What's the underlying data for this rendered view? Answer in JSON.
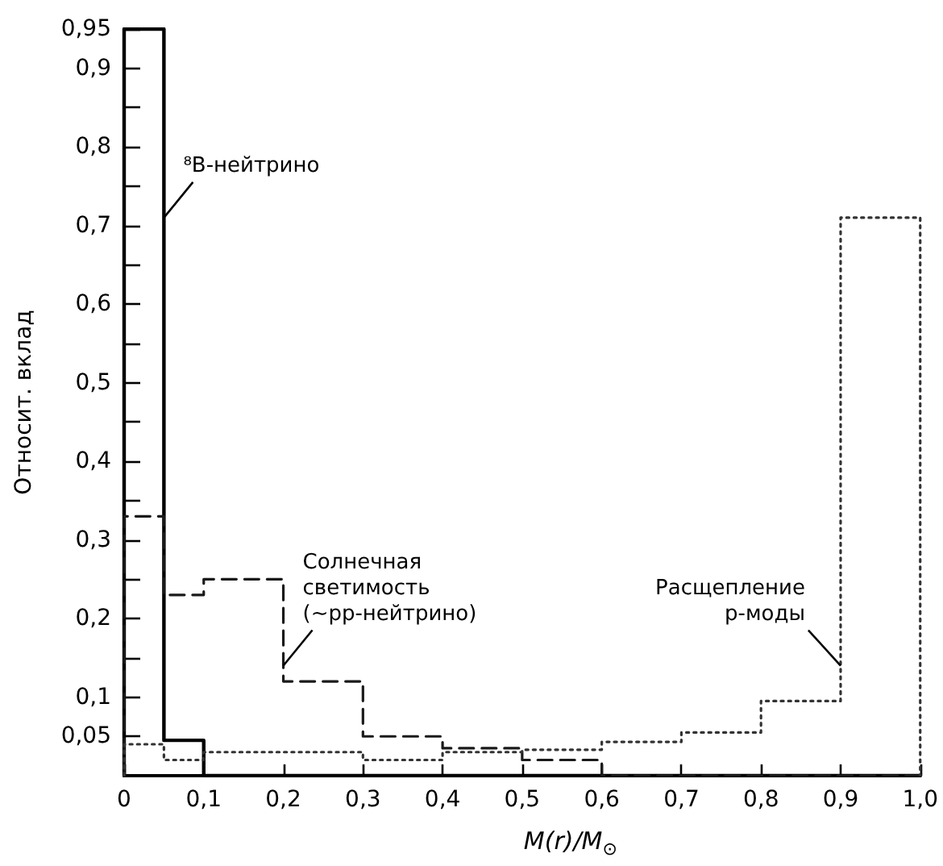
{
  "chart_data": {
    "type": "histogram",
    "xlabel": "M(r)/M$_{⊙}$",
    "ylabel": "Относит. вклад",
    "bins": [
      0,
      0.05,
      0.1,
      0.2,
      0.3,
      0.4,
      0.5,
      0.6,
      0.7,
      0.8,
      0.9,
      1.0
    ],
    "series": [
      {
        "color": "#000000",
        "line_style": "solid",
        "values": [
          0.95,
          0.045,
          0,
          0,
          0,
          0,
          0,
          0,
          0,
          0,
          0
        ]
      },
      {
        "color": "#1a1a1a",
        "line_style": "dashed",
        "values": [
          0.33,
          0.23,
          0.25,
          0.12,
          0.05,
          0.035,
          0.02,
          0,
          0,
          0,
          0
        ]
      },
      {
        "color": "#333333",
        "line_style": "dotted",
        "values": [
          0.04,
          0.02,
          0.03,
          0.03,
          0.02,
          0.03,
          0.033,
          0.043,
          0.055,
          0.095,
          0.71
        ]
      }
    ],
    "annotations": [
      {
        "text": "⁸B-нейтрино",
        "x": 0.05,
        "y": 0.71
      },
      {
        "text": "Солнечная светимость (~pp-нейтрино)",
        "x": 0.2,
        "y": 0.14
      },
      {
        "text": "Расщепление p-моды",
        "x": 0.9,
        "y": 0.14
      }
    ],
    "xlim": [
      0,
      1.0
    ],
    "xticks": [
      {
        "value": 0,
        "label": "0"
      },
      {
        "value": 0.1,
        "label": "0,1"
      },
      {
        "value": 0.2,
        "label": "0,2"
      },
      {
        "value": 0.3,
        "label": "0,3"
      },
      {
        "value": 0.4,
        "label": "0,4"
      },
      {
        "value": 0.5,
        "label": "0,5"
      },
      {
        "value": 0.6,
        "label": "0,6"
      },
      {
        "value": 0.7,
        "label": "0,7"
      },
      {
        "value": 0.8,
        "label": "0,8"
      },
      {
        "value": 0.9,
        "label": "0,9"
      },
      {
        "value": 1.0,
        "label": "1,0"
      }
    ],
    "ylim": [
      0,
      0.95
    ],
    "yticks": [
      {
        "value": 0.05,
        "label": "0,05"
      },
      {
        "value": 0.1,
        "label": "0,1"
      },
      {
        "value": 0.15,
        "label": null
      },
      {
        "value": 0.2,
        "label": "0,2"
      },
      {
        "value": 0.25,
        "label": null
      },
      {
        "value": 0.3,
        "label": "0,3"
      },
      {
        "value": 0.35,
        "label": null
      },
      {
        "value": 0.4,
        "label": "0,4"
      },
      {
        "value": 0.45,
        "label": null
      },
      {
        "value": 0.5,
        "label": "0,5"
      },
      {
        "value": 0.55,
        "label": null
      },
      {
        "value": 0.6,
        "label": "0,6"
      },
      {
        "value": 0.65,
        "label": null
      },
      {
        "value": 0.7,
        "label": "0,7"
      },
      {
        "value": 0.75,
        "label": null
      },
      {
        "value": 0.8,
        "label": "0,8"
      },
      {
        "value": 0.85,
        "label": null
      },
      {
        "value": 0.9,
        "label": "0,9"
      },
      {
        "value": 0.95,
        "label": "0,95"
      }
    ],
    "grid": false,
    "marker": "none"
  }
}
